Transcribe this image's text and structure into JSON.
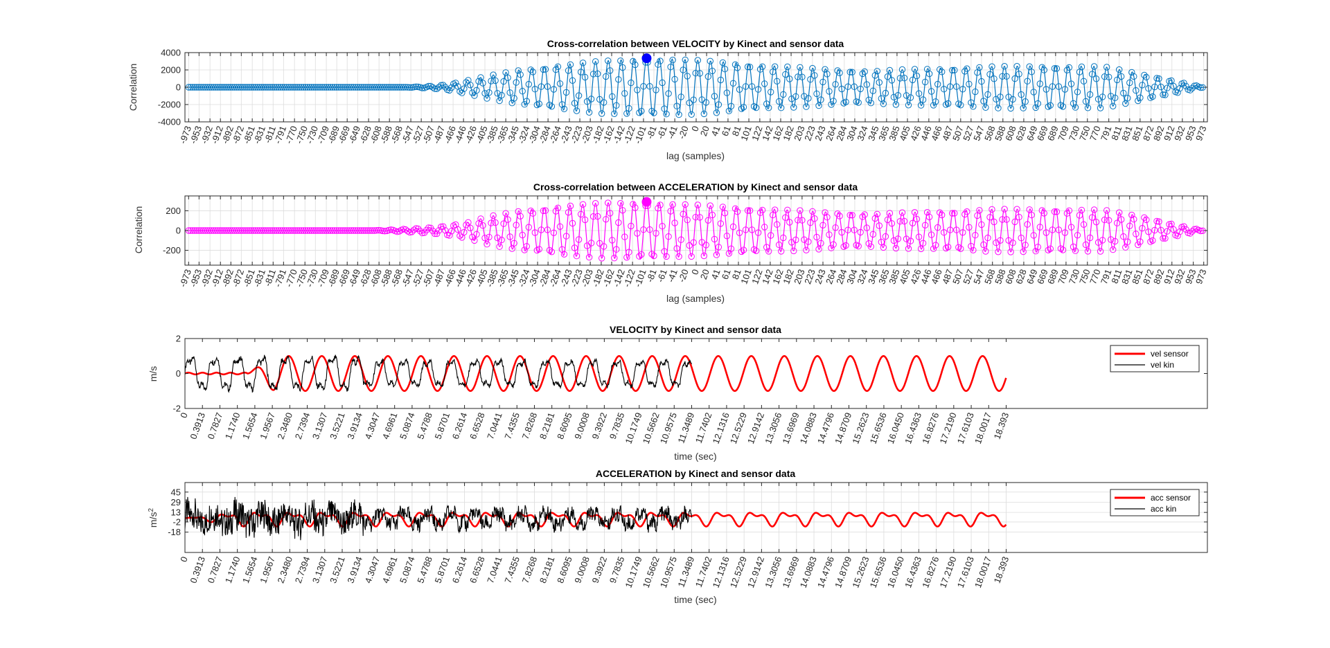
{
  "chart_data": [
    {
      "type": "line",
      "title": "Cross-correlation between VELOCITY by Kinect and sensor data",
      "xlabel": "lag (samples)",
      "ylabel": "Correlation",
      "xlim": [
        -980,
        980
      ],
      "ylim": [
        -4000,
        4000
      ],
      "yticks": [
        -4000,
        -2000,
        0,
        2000,
        4000
      ],
      "xticks": [
        -973,
        -953,
        -932,
        -912,
        -892,
        -872,
        -851,
        -831,
        -811,
        -791,
        -770,
        -750,
        -730,
        -709,
        -689,
        -669,
        -649,
        -628,
        -608,
        -588,
        -568,
        -547,
        -527,
        -507,
        -487,
        -466,
        -446,
        -426,
        -405,
        -385,
        -365,
        -345,
        -324,
        -304,
        -284,
        -264,
        -243,
        -223,
        -203,
        -182,
        -162,
        -142,
        -122,
        -101,
        -81,
        -61,
        -41,
        -20,
        0,
        20,
        41,
        61,
        81,
        101,
        122,
        142,
        162,
        182,
        203,
        223,
        243,
        264,
        284,
        304,
        324,
        345,
        365,
        385,
        405,
        426,
        446,
        466,
        487,
        507,
        527,
        547,
        568,
        588,
        608,
        628,
        649,
        669,
        689,
        709,
        730,
        750,
        770,
        791,
        811,
        831,
        851,
        872,
        892,
        912,
        932,
        953,
        973
      ],
      "grid": true,
      "color": "#0072BD",
      "peak": {
        "x": -95,
        "y": 3350,
        "color": "#0000FF"
      },
      "signal": {
        "onset": -560,
        "cycle_lags": 24.5,
        "envelope": [
          [
            -560,
            0
          ],
          [
            -520,
            100
          ],
          [
            -480,
            300
          ],
          [
            -440,
            800
          ],
          [
            -400,
            1300
          ],
          [
            -340,
            2000
          ],
          [
            -260,
            2600
          ],
          [
            -180,
            3050
          ],
          [
            -100,
            3300
          ],
          [
            -40,
            3250
          ],
          [
            40,
            3000
          ],
          [
            140,
            2500
          ],
          [
            240,
            2150
          ],
          [
            340,
            1900
          ],
          [
            440,
            2150
          ],
          [
            560,
            2400
          ],
          [
            680,
            2500
          ],
          [
            780,
            2400
          ],
          [
            860,
            1500
          ],
          [
            920,
            700
          ],
          [
            973,
            0
          ]
        ]
      }
    },
    {
      "type": "line",
      "title": "Cross-correlation between ACCELERATION by Kinect and sensor data",
      "xlabel": "lag (samples)",
      "ylabel": "Correlation",
      "xlim": [
        -980,
        980
      ],
      "ylim": [
        -350,
        350
      ],
      "yticks": [
        -200,
        0,
        200
      ],
      "xticks": [
        -973,
        -953,
        -932,
        -912,
        -892,
        -872,
        -851,
        -831,
        -811,
        -791,
        -770,
        -750,
        -730,
        -709,
        -689,
        -669,
        -649,
        -628,
        -608,
        -588,
        -568,
        -547,
        -527,
        -507,
        -487,
        -466,
        -446,
        -426,
        -405,
        -385,
        -365,
        -345,
        -324,
        -304,
        -284,
        -264,
        -243,
        -223,
        -203,
        -182,
        -162,
        -142,
        -122,
        -101,
        -81,
        -61,
        -41,
        -20,
        0,
        20,
        41,
        61,
        81,
        101,
        122,
        142,
        162,
        182,
        203,
        223,
        243,
        264,
        284,
        304,
        324,
        345,
        365,
        385,
        405,
        426,
        446,
        466,
        487,
        507,
        527,
        547,
        568,
        588,
        608,
        628,
        649,
        669,
        689,
        709,
        730,
        750,
        770,
        791,
        811,
        831,
        851,
        872,
        892,
        912,
        932,
        953,
        973
      ],
      "grid": true,
      "color": "#FF00FF",
      "peak": {
        "x": -95,
        "y": 290,
        "color": "#FF00FF"
      },
      "signal": {
        "onset": -620,
        "cycle_lags": 24.5,
        "envelope": [
          [
            -620,
            0
          ],
          [
            -560,
            15
          ],
          [
            -500,
            35
          ],
          [
            -440,
            80
          ],
          [
            -400,
            140
          ],
          [
            -340,
            200
          ],
          [
            -260,
            250
          ],
          [
            -180,
            280
          ],
          [
            -100,
            290
          ],
          [
            -40,
            270
          ],
          [
            40,
            250
          ],
          [
            140,
            220
          ],
          [
            240,
            190
          ],
          [
            340,
            170
          ],
          [
            440,
            190
          ],
          [
            560,
            215
          ],
          [
            680,
            220
          ],
          [
            780,
            210
          ],
          [
            860,
            140
          ],
          [
            920,
            60
          ],
          [
            973,
            0
          ]
        ]
      }
    },
    {
      "type": "line",
      "title": "VELOCITY by Kinect and sensor data",
      "xlabel": "time (sec)",
      "ylabel": "m/s",
      "xlim": [
        0,
        22.9
      ],
      "ylim": [
        -2,
        2
      ],
      "yticks": [
        -2,
        0,
        2
      ],
      "xticks": [
        "0",
        "0.3913",
        "0.7827",
        "1.1740",
        "1.5654",
        "1.9567",
        "2.3480",
        "2.7394",
        "3.1307",
        "3.5221",
        "3.9134",
        "4.3047",
        "4.6961",
        "5.0874",
        "5.4788",
        "5.8701",
        "6.2614",
        "6.6528",
        "7.0441",
        "7.4355",
        "7.8268",
        "8.2181",
        "8.6095",
        "9.0008",
        "9.3922",
        "9.7835",
        "10.1749",
        "10.5662",
        "10.9575",
        "11.3489",
        "11.7402",
        "12.1316",
        "12.5229",
        "12.9142",
        "13.3056",
        "13.6969",
        "14.0883",
        "14.4796",
        "14.8709",
        "15.2623",
        "15.6536",
        "16.0450",
        "16.4363",
        "16.8276",
        "17.2190",
        "17.6103",
        "18.0017",
        "18.393"
      ],
      "grid": false,
      "legend_position": "top-right",
      "series": [
        {
          "name": "vel sensor",
          "color": "#FF0000",
          "t_end": 18.393,
          "onset": 1.4,
          "period": 0.74,
          "amplitude": 1.0
        },
        {
          "name": "vel kin",
          "color": "#000000",
          "t_end": 11.35,
          "period": 0.53,
          "amplitude": 0.9
        }
      ]
    },
    {
      "type": "line",
      "title": "ACCELERATION by Kinect and sensor data",
      "xlabel": "time (sec)",
      "ylabel": "m/s",
      "ylabel_superscript": "2",
      "xlim": [
        0,
        22.9
      ],
      "ylim": [
        -50,
        60
      ],
      "yticks": [
        -18,
        -2,
        13,
        29,
        45
      ],
      "xticks": [
        "0",
        "0.3913",
        "0.7827",
        "1.1740",
        "1.5654",
        "1.9567",
        "2.3480",
        "2.7394",
        "3.1307",
        "3.5221",
        "3.9134",
        "4.3047",
        "4.6961",
        "5.0874",
        "5.4788",
        "5.8701",
        "6.2614",
        "6.6528",
        "7.0441",
        "7.4355",
        "7.8268",
        "8.2181",
        "8.6095",
        "9.0008",
        "9.3922",
        "9.7835",
        "10.1749",
        "10.5662",
        "10.9575",
        "11.3489",
        "11.7402",
        "12.1316",
        "12.5229",
        "12.9142",
        "13.3056",
        "13.6969",
        "14.0883",
        "14.4796",
        "14.8709",
        "15.2623",
        "15.6536",
        "16.0450",
        "16.4363",
        "16.8276",
        "17.2190",
        "17.6103",
        "18.0017",
        "18.393"
      ],
      "grid": true,
      "legend_position": "top-right",
      "series": [
        {
          "name": "acc sensor",
          "color": "#FF0000",
          "t_end": 18.393,
          "period": 0.74,
          "amplitude": 14
        },
        {
          "name": "acc kin",
          "color": "#000000",
          "t_end": 11.35,
          "period": 0.53,
          "amplitude": 18
        }
      ]
    }
  ]
}
